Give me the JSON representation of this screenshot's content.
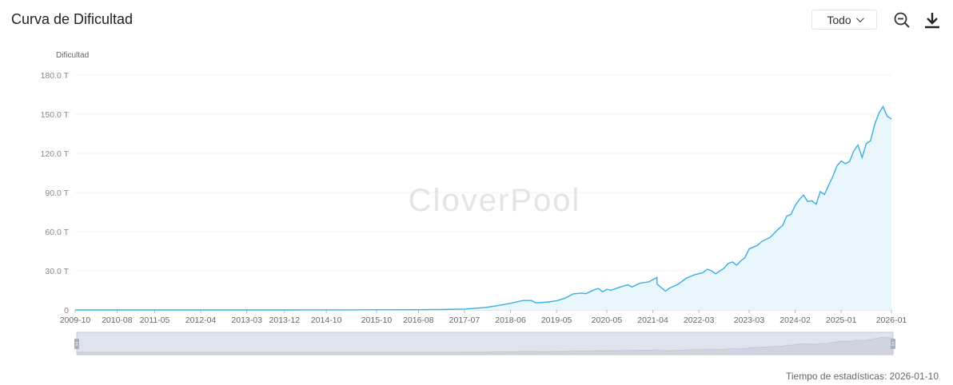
{
  "header": {
    "title": "Curva de Dificultad",
    "range_value": "Todo"
  },
  "toolbar": {
    "zoom_icon": "zoom-out-icon",
    "download_icon": "download-icon"
  },
  "footer": {
    "stat_time": "Tiempo de estadísticas: 2026-01-10"
  },
  "chart_data": {
    "type": "area",
    "ylabel": "Dificultad",
    "watermark": "CloverPool",
    "ylim": [
      0,
      180
    ],
    "y_ticks": [
      "0",
      "30.0 T",
      "60.0 T",
      "90.0 T",
      "120.0 T",
      "150.0 T",
      "180.0 T"
    ],
    "y_tick_values": [
      0,
      30,
      60,
      90,
      120,
      150,
      180
    ],
    "x_ticks": [
      "2009-10",
      "2010-08",
      "2011-05",
      "2012-04",
      "2013-03",
      "2013-12",
      "2014-10",
      "2015-10",
      "2016-08",
      "2017-07",
      "2018-06",
      "2019-05",
      "2020-05",
      "2021-04",
      "2022-03",
      "2023-03",
      "2024-02",
      "2025-01",
      "2026-01"
    ],
    "line_color": "#3aaee6",
    "fill_color": "#e9f6fc",
    "series": [
      {
        "values": [
          [
            "2009-10",
            0
          ],
          [
            "2012-01",
            0
          ],
          [
            "2014-01",
            0.01
          ],
          [
            "2015-01",
            0.04
          ],
          [
            "2016-01",
            0.1
          ],
          [
            "2016-08",
            0.2
          ],
          [
            "2017-01",
            0.3
          ],
          [
            "2017-07",
            0.7
          ],
          [
            "2017-12",
            1.9
          ],
          [
            "2018-03",
            3.3
          ],
          [
            "2018-06",
            5.1
          ],
          [
            "2018-09",
            7.2
          ],
          [
            "2018-11",
            7.2
          ],
          [
            "2018-12",
            5.6
          ],
          [
            "2019-01",
            5.6
          ],
          [
            "2019-03",
            6.1
          ],
          [
            "2019-05",
            7.0
          ],
          [
            "2019-07",
            9.0
          ],
          [
            "2019-09",
            12.3
          ],
          [
            "2019-11",
            12.9
          ],
          [
            "2019-12",
            12.5
          ],
          [
            "2020-02",
            15.5
          ],
          [
            "2020-03",
            16.5
          ],
          [
            "2020-04",
            13.9
          ],
          [
            "2020-05",
            15.8
          ],
          [
            "2020-06",
            15.1
          ],
          [
            "2020-08",
            17.3
          ],
          [
            "2020-10",
            19.3
          ],
          [
            "2020-11",
            17.6
          ],
          [
            "2021-01",
            20.6
          ],
          [
            "2021-03",
            21.4
          ],
          [
            "2021-05",
            25.0
          ],
          [
            "2021-05",
            19.9
          ],
          [
            "2021-07",
            14.4
          ],
          [
            "2021-08",
            16.8
          ],
          [
            "2021-10",
            19.6
          ],
          [
            "2021-12",
            24.3
          ],
          [
            "2022-02",
            27.0
          ],
          [
            "2022-04",
            28.6
          ],
          [
            "2022-05",
            31.2
          ],
          [
            "2022-06",
            30.0
          ],
          [
            "2022-07",
            27.7
          ],
          [
            "2022-09",
            32.0
          ],
          [
            "2022-10",
            35.6
          ],
          [
            "2022-11",
            36.8
          ],
          [
            "2022-12",
            34.2
          ],
          [
            "2023-01",
            37.6
          ],
          [
            "2023-02",
            40.0
          ],
          [
            "2023-03",
            46.8
          ],
          [
            "2023-05",
            49.5
          ],
          [
            "2023-06",
            52.4
          ],
          [
            "2023-08",
            55.6
          ],
          [
            "2023-10",
            62.0
          ],
          [
            "2023-11",
            64.7
          ],
          [
            "2023-12",
            72.0
          ],
          [
            "2024-01",
            73.2
          ],
          [
            "2024-02",
            80.0
          ],
          [
            "2024-03",
            84.6
          ],
          [
            "2024-04",
            88.1
          ],
          [
            "2024-05",
            83.1
          ],
          [
            "2024-06",
            83.7
          ],
          [
            "2024-07",
            81.0
          ],
          [
            "2024-08",
            90.7
          ],
          [
            "2024-09",
            88.4
          ],
          [
            "2024-10",
            95.7
          ],
          [
            "2024-11",
            102.3
          ],
          [
            "2024-12",
            110.5
          ],
          [
            "2025-01",
            114.2
          ],
          [
            "2025-02",
            112.1
          ],
          [
            "2025-03",
            113.7
          ],
          [
            "2025-04",
            121.9
          ],
          [
            "2025-05",
            126.4
          ],
          [
            "2025-06",
            116.9
          ],
          [
            "2025-07",
            127.6
          ],
          [
            "2025-08",
            129.6
          ],
          [
            "2025-09",
            142.3
          ],
          [
            "2025-10",
            150.8
          ],
          [
            "2025-11",
            155.9
          ],
          [
            "2025-12",
            148.2
          ],
          [
            "2026-01",
            146.5
          ]
        ]
      }
    ],
    "grid": true
  }
}
